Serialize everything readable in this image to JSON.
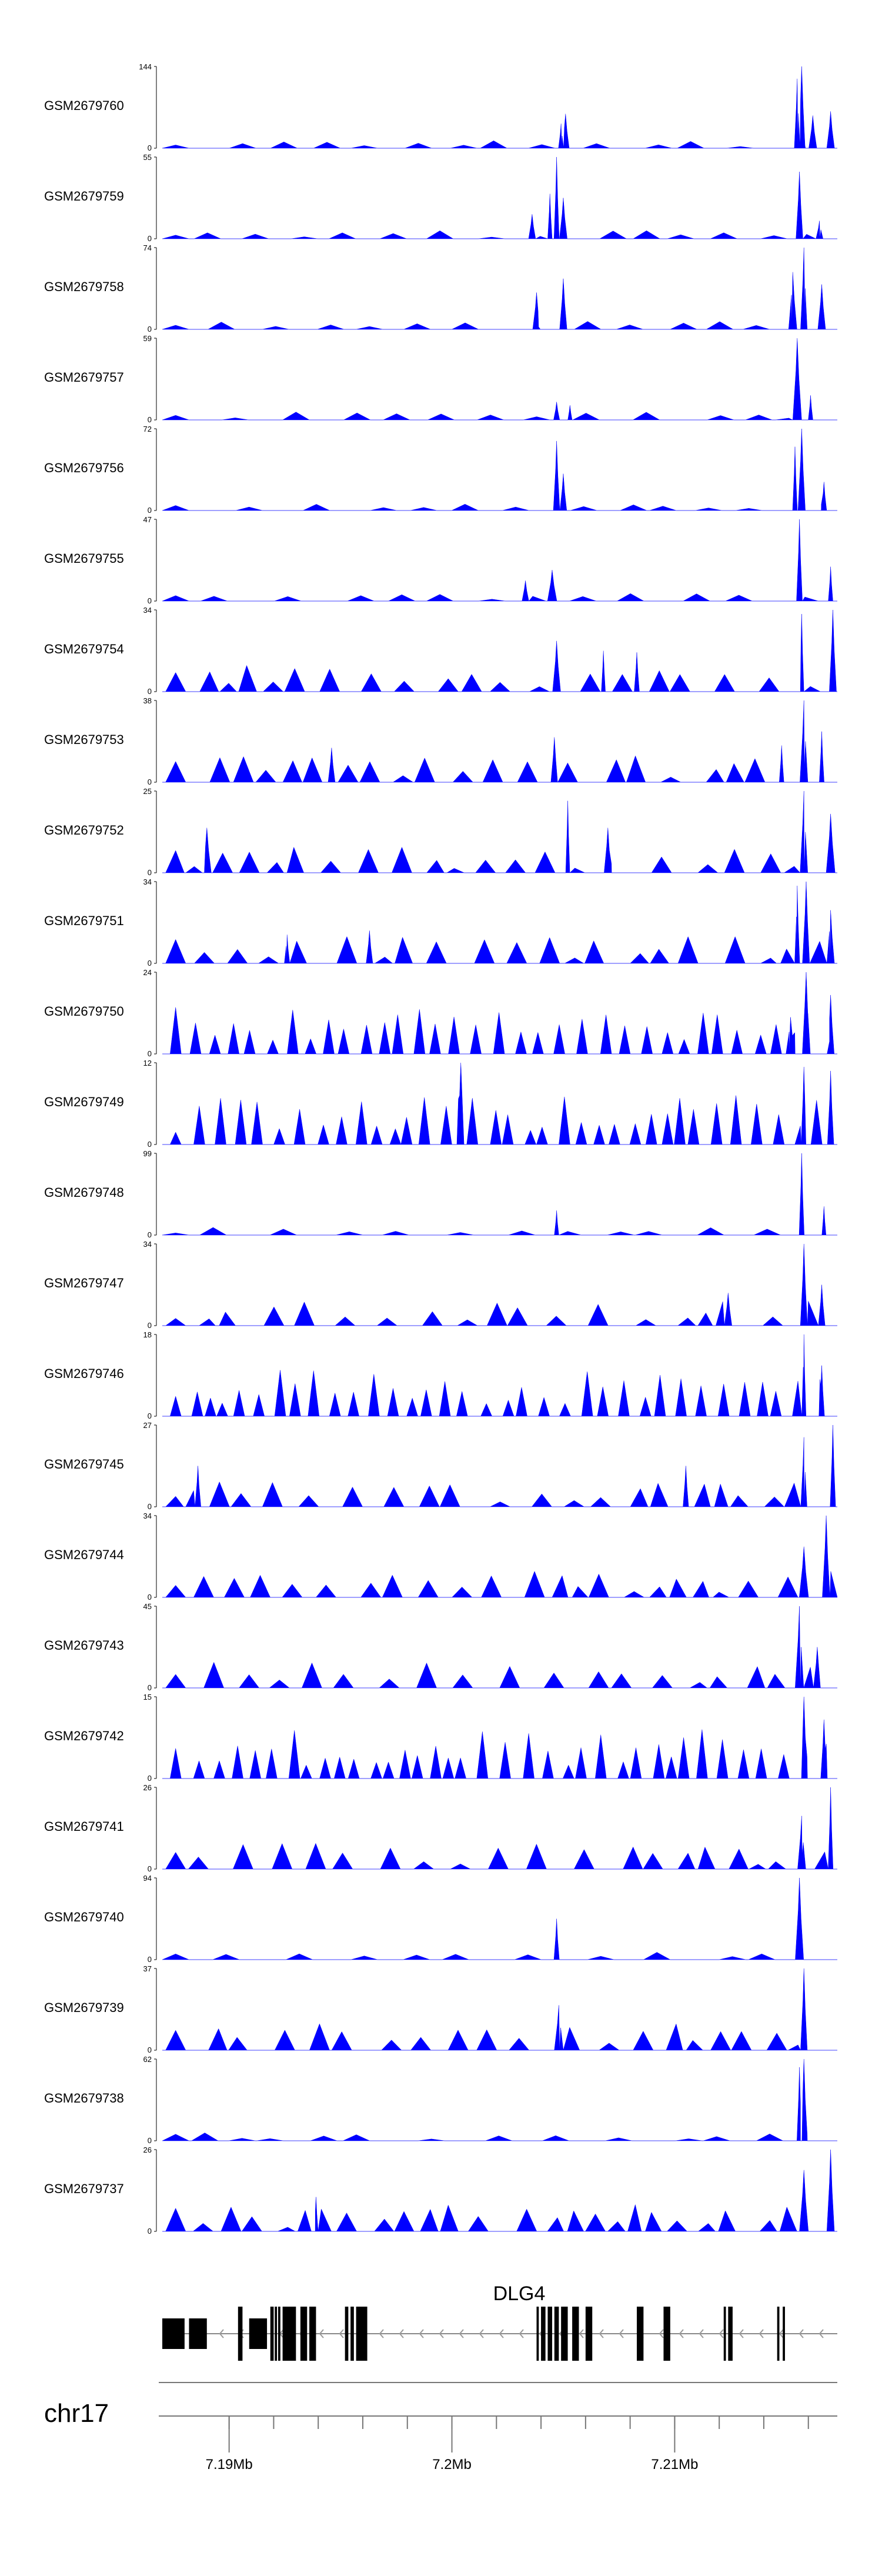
{
  "chart_data": {
    "type": "area",
    "title": "",
    "chromosome": "chr17",
    "gene": "DLG4",
    "fill_color": "#0000ff",
    "xlim": [
      7187000,
      7217300
    ],
    "axis_ticks": [
      {
        "value": 7190000,
        "label": "7.19Mb"
      },
      {
        "value": 7200000,
        "label": "7.2Mb"
      },
      {
        "value": 7210000,
        "label": "7.21Mb"
      }
    ],
    "minor_ticks": [
      7190000,
      7192000,
      7194000,
      7196000,
      7198000,
      7200000,
      7202000,
      7204000,
      7206000,
      7208000,
      7210000,
      7212000,
      7214000,
      7216000
    ],
    "tracks": [
      {
        "sample": "GSM2679760",
        "ymax": 144,
        "ymin": 0,
        "style": "peaky",
        "peaks": [
          [
            7204900,
            0.3
          ],
          [
            7205100,
            0.42
          ],
          [
            7215500,
            0.85
          ],
          [
            7215700,
            1.0
          ],
          [
            7216200,
            0.4
          ],
          [
            7217000,
            0.45
          ]
        ]
      },
      {
        "sample": "GSM2679759",
        "ymax": 55,
        "ymin": 0,
        "style": "peaky",
        "peaks": [
          [
            7203600,
            0.3
          ],
          [
            7204400,
            0.55
          ],
          [
            7204700,
            1.0
          ],
          [
            7205000,
            0.5
          ],
          [
            7215600,
            0.82
          ],
          [
            7216500,
            0.22
          ]
        ]
      },
      {
        "sample": "GSM2679758",
        "ymax": 74,
        "ymin": 0,
        "style": "peaky",
        "peaks": [
          [
            7203800,
            0.45
          ],
          [
            7205000,
            0.62
          ],
          [
            7215300,
            0.7
          ],
          [
            7215800,
            1.0
          ],
          [
            7216600,
            0.55
          ]
        ]
      },
      {
        "sample": "GSM2679757",
        "ymax": 59,
        "ymin": 0,
        "style": "peaky",
        "peaks": [
          [
            7204700,
            0.22
          ],
          [
            7205300,
            0.18
          ],
          [
            7215500,
            1.0
          ],
          [
            7216100,
            0.3
          ]
        ]
      },
      {
        "sample": "GSM2679756",
        "ymax": 72,
        "ymin": 0,
        "style": "peaky",
        "peaks": [
          [
            7204700,
            0.85
          ],
          [
            7205000,
            0.45
          ],
          [
            7215400,
            0.78
          ],
          [
            7215700,
            1.0
          ],
          [
            7216700,
            0.35
          ]
        ]
      },
      {
        "sample": "GSM2679755",
        "ymax": 47,
        "ymin": 0,
        "style": "peaky",
        "peaks": [
          [
            7203300,
            0.25
          ],
          [
            7204500,
            0.38
          ],
          [
            7215600,
            1.0
          ],
          [
            7217000,
            0.42
          ]
        ]
      },
      {
        "sample": "GSM2679754",
        "ymax": 34,
        "ymin": 0,
        "style": "dense",
        "peaks": [
          [
            7204700,
            0.62
          ],
          [
            7206800,
            0.5
          ],
          [
            7208300,
            0.48
          ],
          [
            7215700,
            0.95
          ],
          [
            7217100,
            1.0
          ]
        ]
      },
      {
        "sample": "GSM2679753",
        "ymax": 38,
        "ymin": 0,
        "style": "dense",
        "peaks": [
          [
            7194600,
            0.42
          ],
          [
            7204600,
            0.55
          ],
          [
            7214800,
            0.45
          ],
          [
            7215800,
            1.0
          ],
          [
            7216600,
            0.62
          ]
        ]
      },
      {
        "sample": "GSM2679752",
        "ymax": 25,
        "ymin": 0,
        "style": "dense",
        "peaks": [
          [
            7189000,
            0.55
          ],
          [
            7205200,
            0.88
          ],
          [
            7207000,
            0.55
          ],
          [
            7215800,
            1.0
          ],
          [
            7217000,
            0.72
          ]
        ]
      },
      {
        "sample": "GSM2679751",
        "ymax": 34,
        "ymin": 0,
        "style": "dense",
        "peaks": [
          [
            7192600,
            0.35
          ],
          [
            7196300,
            0.4
          ],
          [
            7215500,
            0.95
          ],
          [
            7215900,
            1.0
          ],
          [
            7217000,
            0.65
          ]
        ]
      },
      {
        "sample": "GSM2679750",
        "ymax": 24,
        "ymin": 0,
        "style": "sparse",
        "peaks": [
          [
            7215900,
            1.0
          ],
          [
            7215200,
            0.45
          ],
          [
            7217000,
            0.72
          ]
        ]
      },
      {
        "sample": "GSM2679749",
        "ymax": 12,
        "ymin": 0,
        "style": "sparse",
        "peaks": [
          [
            7200400,
            1.0
          ],
          [
            7215800,
            0.95
          ],
          [
            7217000,
            0.9
          ]
        ]
      },
      {
        "sample": "GSM2679748",
        "ymax": 99,
        "ymin": 0,
        "style": "peaky",
        "peaks": [
          [
            7204700,
            0.3
          ],
          [
            7215700,
            1.0
          ],
          [
            7216700,
            0.35
          ]
        ]
      },
      {
        "sample": "GSM2679747",
        "ymax": 34,
        "ymin": 0,
        "style": "dense",
        "peaks": [
          [
            7212400,
            0.4
          ],
          [
            7215800,
            1.0
          ],
          [
            7216600,
            0.5
          ]
        ]
      },
      {
        "sample": "GSM2679746",
        "ymax": 18,
        "ymin": 0,
        "style": "sparse",
        "peaks": [
          [
            7215800,
            1.0
          ],
          [
            7216600,
            0.62
          ]
        ]
      },
      {
        "sample": "GSM2679745",
        "ymax": 27,
        "ymin": 0,
        "style": "dense",
        "peaks": [
          [
            7188600,
            0.5
          ],
          [
            7210500,
            0.5
          ],
          [
            7215800,
            0.85
          ],
          [
            7217100,
            1.0
          ]
        ]
      },
      {
        "sample": "GSM2679744",
        "ymax": 34,
        "ymin": 0,
        "style": "dense",
        "peaks": [
          [
            7215800,
            0.62
          ],
          [
            7216800,
            1.0
          ]
        ]
      },
      {
        "sample": "GSM2679743",
        "ymax": 45,
        "ymin": 0,
        "style": "dense",
        "peaks": [
          [
            7215600,
            1.0
          ],
          [
            7216400,
            0.5
          ]
        ]
      },
      {
        "sample": "GSM2679742",
        "ymax": 15,
        "ymin": 0,
        "style": "sparse",
        "peaks": [
          [
            7215800,
            1.0
          ],
          [
            7216700,
            0.72
          ]
        ]
      },
      {
        "sample": "GSM2679741",
        "ymax": 26,
        "ymin": 0,
        "style": "dense",
        "peaks": [
          [
            7215700,
            0.65
          ],
          [
            7217000,
            1.0
          ]
        ]
      },
      {
        "sample": "GSM2679740",
        "ymax": 94,
        "ymin": 0,
        "style": "peaky",
        "peaks": [
          [
            7204700,
            0.5
          ],
          [
            7215600,
            1.0
          ]
        ]
      },
      {
        "sample": "GSM2679739",
        "ymax": 37,
        "ymin": 0,
        "style": "dense",
        "peaks": [
          [
            7204800,
            0.55
          ],
          [
            7215800,
            1.0
          ]
        ]
      },
      {
        "sample": "GSM2679738",
        "ymax": 62,
        "ymin": 0,
        "style": "peaky",
        "peaks": [
          [
            7215600,
            0.9
          ],
          [
            7215800,
            1.0
          ]
        ]
      },
      {
        "sample": "GSM2679737",
        "ymax": 26,
        "ymin": 0,
        "style": "dense",
        "peaks": [
          [
            7193900,
            0.42
          ],
          [
            7215800,
            0.75
          ],
          [
            7217000,
            1.0
          ]
        ]
      }
    ],
    "gene_model": {
      "name": "DLG4",
      "strand": "-",
      "start": 7187000,
      "end": 7217300,
      "exons": [
        [
          7187000,
          7188000
        ],
        [
          7188200,
          7189000
        ],
        [
          7190400,
          7190600
        ],
        [
          7190900,
          7191700
        ],
        [
          7191850,
          7192000
        ],
        [
          7192050,
          7192150
        ],
        [
          7192200,
          7192300
        ],
        [
          7192400,
          7193000
        ],
        [
          7193200,
          7193500
        ],
        [
          7193600,
          7193900
        ],
        [
          7195200,
          7195350
        ],
        [
          7195450,
          7195600
        ],
        [
          7195700,
          7196200
        ],
        [
          7203800,
          7203900
        ],
        [
          7204000,
          7204200
        ],
        [
          7204300,
          7204500
        ],
        [
          7204600,
          7204800
        ],
        [
          7204900,
          7205200
        ],
        [
          7205400,
          7205700
        ],
        [
          7206000,
          7206300
        ],
        [
          7208300,
          7208600
        ],
        [
          7209500,
          7209800
        ],
        [
          7212200,
          7212300
        ],
        [
          7212400,
          7212600
        ],
        [
          7214600,
          7214700
        ],
        [
          7214850,
          7214950
        ]
      ]
    }
  }
}
